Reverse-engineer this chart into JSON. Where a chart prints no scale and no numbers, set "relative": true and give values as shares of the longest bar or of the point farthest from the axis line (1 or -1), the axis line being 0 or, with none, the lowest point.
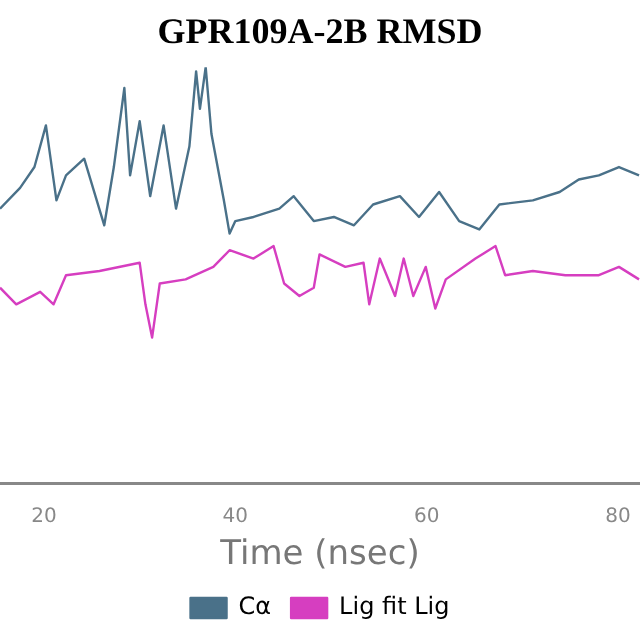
{
  "chart_data": {
    "type": "line",
    "title": "GPR109A-2B RMSD",
    "xlabel": "Time (nsec)",
    "relative": true,
    "xlim": [
      15.4,
      82.3
    ],
    "xticks": [
      20,
      40,
      60,
      80
    ],
    "grid": false,
    "legend": "bottom",
    "marker": "none",
    "line_style": "solid",
    "series": [
      {
        "name": "Cα",
        "color": "#4a7189",
        "x": [
          15.4,
          17.5,
          19.0,
          20.2,
          21.3,
          22.3,
          24.2,
          26.3,
          27.3,
          28.4,
          29.0,
          30.0,
          31.1,
          32.5,
          33.8,
          35.2,
          35.9,
          36.3,
          36.9,
          37.5,
          38.8,
          39.4,
          40.0,
          41.9,
          44.6,
          46.1,
          48.2,
          50.3,
          52.4,
          54.4,
          57.2,
          59.2,
          61.3,
          63.4,
          65.5,
          67.6,
          71.1,
          73.9,
          75.9,
          78.0,
          80.1,
          82.2
        ],
        "values": [
          0.66,
          0.71,
          0.76,
          0.86,
          0.68,
          0.74,
          0.78,
          0.62,
          0.76,
          0.95,
          0.74,
          0.87,
          0.69,
          0.86,
          0.66,
          0.81,
          0.99,
          0.9,
          1.0,
          0.84,
          0.68,
          0.6,
          0.63,
          0.64,
          0.66,
          0.69,
          0.63,
          0.64,
          0.62,
          0.67,
          0.69,
          0.64,
          0.7,
          0.63,
          0.61,
          0.67,
          0.68,
          0.7,
          0.73,
          0.74,
          0.76,
          0.74
        ]
      },
      {
        "name": "Lig fit Lig",
        "color": "#d63ec0",
        "x": [
          15.4,
          17.1,
          19.6,
          21.0,
          22.3,
          25.8,
          30.0,
          30.6,
          31.3,
          32.1,
          34.8,
          37.7,
          39.4,
          41.9,
          44.0,
          45.1,
          46.7,
          48.2,
          48.8,
          51.5,
          53.4,
          54.0,
          55.1,
          56.7,
          57.6,
          58.6,
          59.9,
          60.9,
          62.0,
          65.1,
          67.2,
          68.2,
          71.1,
          74.5,
          78.0,
          80.1,
          82.2
        ],
        "values": [
          0.47,
          0.43,
          0.46,
          0.43,
          0.5,
          0.51,
          0.53,
          0.43,
          0.35,
          0.48,
          0.49,
          0.52,
          0.56,
          0.54,
          0.57,
          0.48,
          0.45,
          0.47,
          0.55,
          0.52,
          0.53,
          0.43,
          0.54,
          0.45,
          0.54,
          0.45,
          0.52,
          0.42,
          0.49,
          0.54,
          0.57,
          0.5,
          0.51,
          0.5,
          0.5,
          0.52,
          0.49
        ]
      }
    ]
  }
}
